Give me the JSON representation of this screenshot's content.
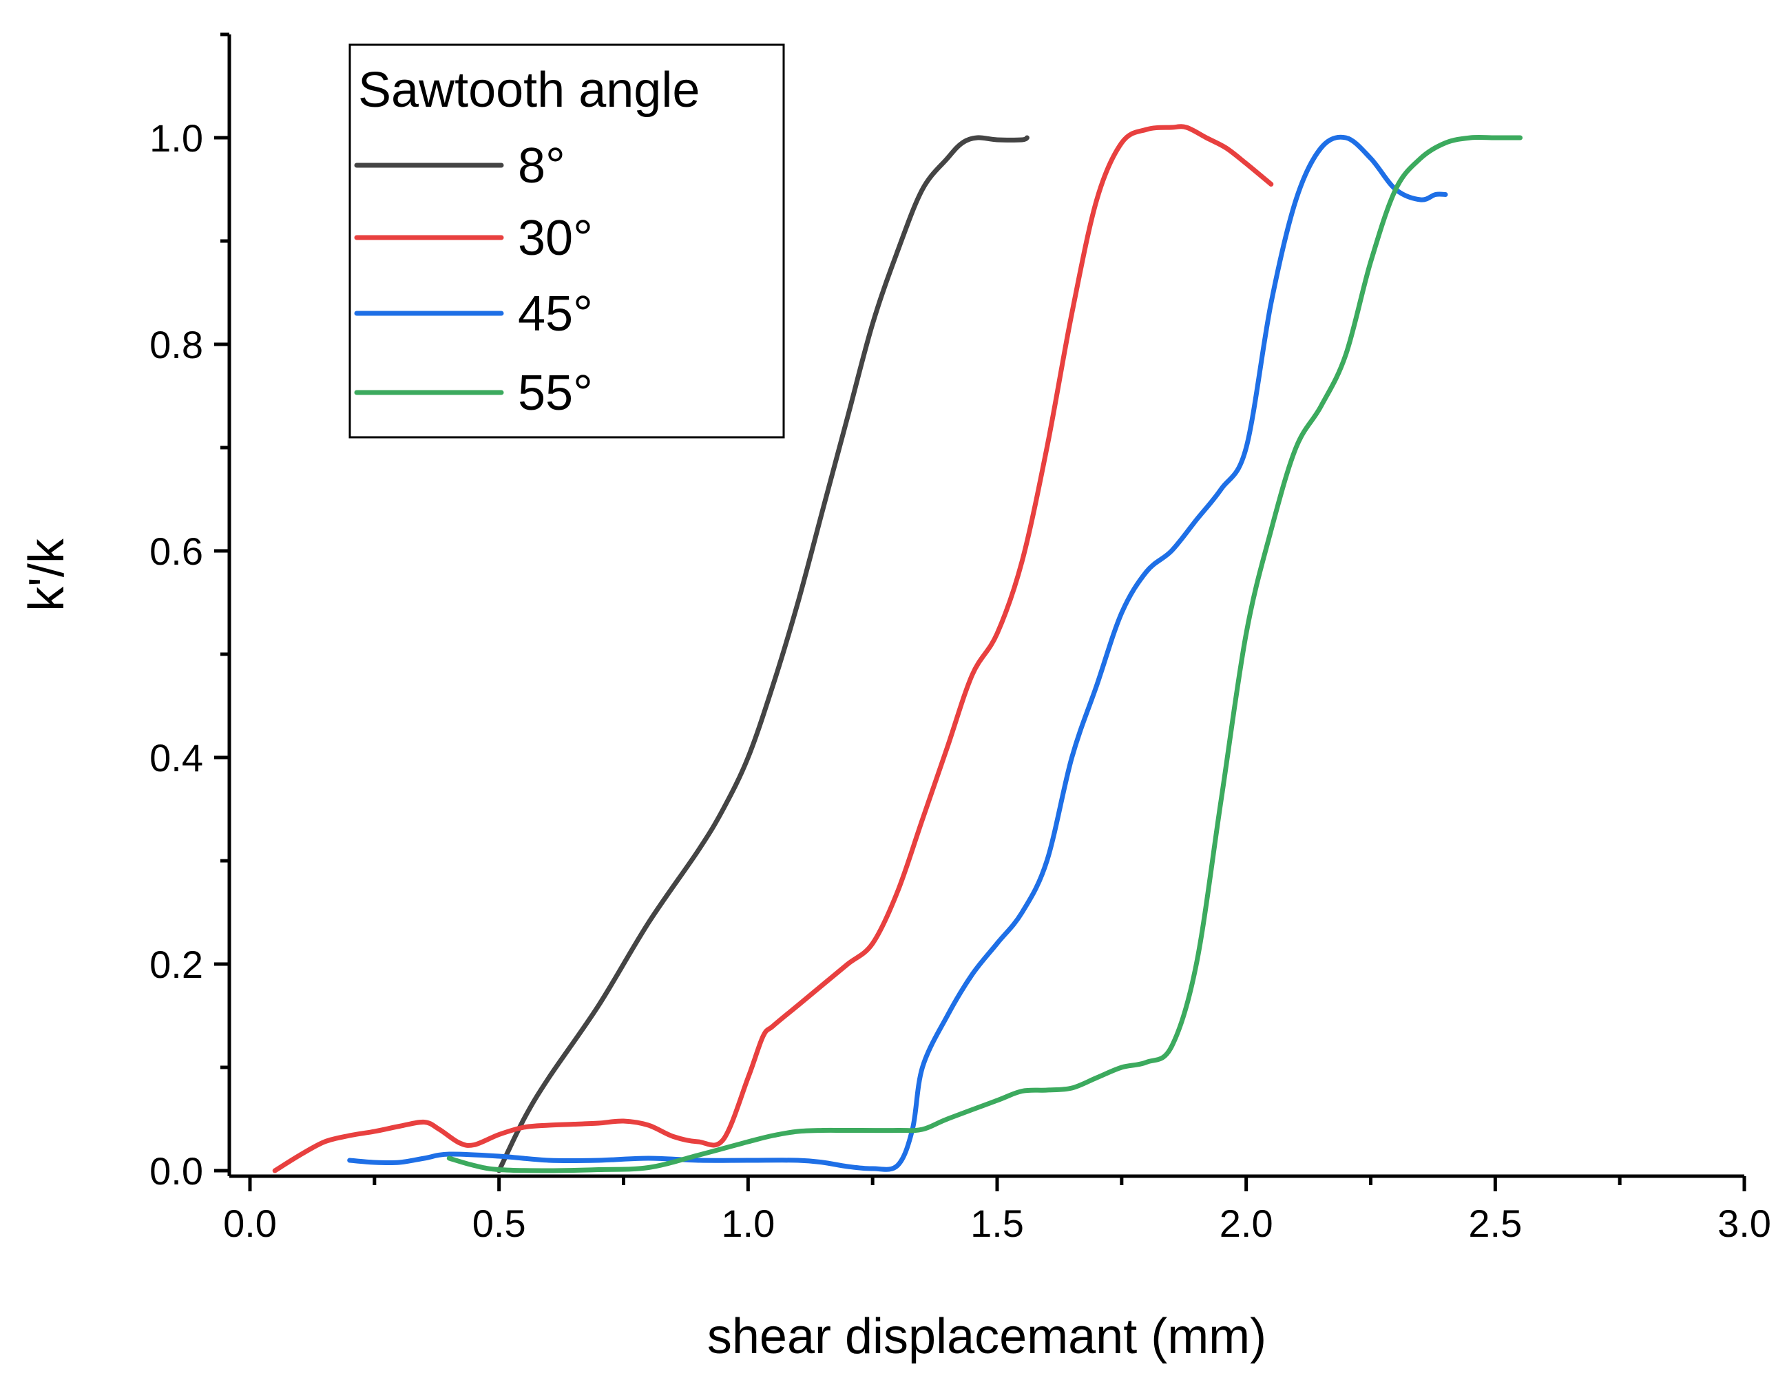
{
  "chart_data": {
    "type": "line",
    "title": "",
    "xlabel": "shear displacemant (mm)",
    "ylabel": "k'/k",
    "xlim": [
      -0.05,
      3.0
    ],
    "ylim": [
      -0.01,
      1.1
    ],
    "xticks": [
      0.0,
      0.5,
      1.0,
      1.5,
      2.0,
      2.5,
      3.0
    ],
    "xtick_labels": [
      "0.0",
      "0.5",
      "1.0",
      "1.5",
      "2.0",
      "2.5",
      "3.0"
    ],
    "yticks": [
      0.0,
      0.2,
      0.4,
      0.6,
      0.8,
      1.0
    ],
    "ytick_labels": [
      "0.0",
      "0.2",
      "0.4",
      "0.6",
      "0.8",
      "1.0"
    ],
    "grid": false,
    "legend": {
      "title": "Sawtooth angle",
      "position": "top-left"
    },
    "series": [
      {
        "name": "8°",
        "color": "#444444",
        "x": [
          0.5,
          0.55,
          0.6,
          0.7,
          0.8,
          0.9,
          0.95,
          1.0,
          1.05,
          1.1,
          1.15,
          1.2,
          1.25,
          1.3,
          1.35,
          1.4,
          1.43,
          1.46,
          1.5,
          1.55,
          1.56
        ],
        "y": [
          0.0,
          0.05,
          0.09,
          0.16,
          0.24,
          0.31,
          0.35,
          0.4,
          0.47,
          0.55,
          0.64,
          0.73,
          0.82,
          0.89,
          0.95,
          0.98,
          0.995,
          1.0,
          0.998,
          0.998,
          1.0
        ]
      },
      {
        "name": "30°",
        "color": "#e8403f",
        "x": [
          0.05,
          0.1,
          0.15,
          0.2,
          0.25,
          0.3,
          0.35,
          0.38,
          0.42,
          0.45,
          0.5,
          0.55,
          0.6,
          0.65,
          0.7,
          0.75,
          0.8,
          0.85,
          0.9,
          0.95,
          1.0,
          1.03,
          1.05,
          1.1,
          1.15,
          1.2,
          1.25,
          1.3,
          1.35,
          1.4,
          1.45,
          1.5,
          1.55,
          1.6,
          1.65,
          1.7,
          1.75,
          1.8,
          1.85,
          1.88,
          1.92,
          1.96,
          2.0,
          2.05
        ],
        "y": [
          0.0,
          0.015,
          0.028,
          0.034,
          0.038,
          0.043,
          0.047,
          0.04,
          0.027,
          0.025,
          0.035,
          0.042,
          0.044,
          0.045,
          0.046,
          0.048,
          0.044,
          0.033,
          0.028,
          0.03,
          0.09,
          0.13,
          0.14,
          0.16,
          0.18,
          0.2,
          0.22,
          0.27,
          0.34,
          0.41,
          0.48,
          0.52,
          0.59,
          0.7,
          0.83,
          0.94,
          0.995,
          1.008,
          1.01,
          1.01,
          1.0,
          0.99,
          0.975,
          0.955
        ]
      },
      {
        "name": "45°",
        "color": "#1e6fe6",
        "x": [
          0.2,
          0.25,
          0.3,
          0.35,
          0.4,
          0.5,
          0.6,
          0.7,
          0.8,
          0.9,
          1.0,
          1.1,
          1.15,
          1.2,
          1.25,
          1.3,
          1.33,
          1.35,
          1.4,
          1.45,
          1.5,
          1.55,
          1.6,
          1.65,
          1.7,
          1.75,
          1.8,
          1.85,
          1.9,
          1.95,
          2.0,
          2.05,
          2.1,
          2.15,
          2.2,
          2.25,
          2.3,
          2.35,
          2.38,
          2.4
        ],
        "y": [
          0.01,
          0.008,
          0.008,
          0.012,
          0.016,
          0.014,
          0.01,
          0.01,
          0.012,
          0.01,
          0.01,
          0.01,
          0.008,
          0.004,
          0.002,
          0.005,
          0.04,
          0.1,
          0.15,
          0.19,
          0.22,
          0.25,
          0.3,
          0.4,
          0.47,
          0.54,
          0.58,
          0.6,
          0.63,
          0.66,
          0.7,
          0.84,
          0.94,
          0.99,
          1.0,
          0.98,
          0.95,
          0.94,
          0.945,
          0.945
        ]
      },
      {
        "name": "55°",
        "color": "#3caa5e",
        "x": [
          0.4,
          0.45,
          0.5,
          0.6,
          0.7,
          0.8,
          0.9,
          1.0,
          1.05,
          1.1,
          1.15,
          1.2,
          1.3,
          1.35,
          1.4,
          1.5,
          1.55,
          1.6,
          1.65,
          1.7,
          1.75,
          1.8,
          1.85,
          1.9,
          1.95,
          2.0,
          2.05,
          2.1,
          2.15,
          2.2,
          2.25,
          2.3,
          2.35,
          2.4,
          2.45,
          2.5,
          2.55
        ],
        "y": [
          0.012,
          0.005,
          0.001,
          0.0,
          0.001,
          0.003,
          0.015,
          0.028,
          0.034,
          0.038,
          0.039,
          0.039,
          0.039,
          0.04,
          0.05,
          0.068,
          0.077,
          0.078,
          0.08,
          0.09,
          0.1,
          0.105,
          0.12,
          0.2,
          0.36,
          0.52,
          0.62,
          0.7,
          0.74,
          0.79,
          0.88,
          0.95,
          0.98,
          0.995,
          1.0,
          1.0,
          1.0
        ]
      }
    ]
  }
}
